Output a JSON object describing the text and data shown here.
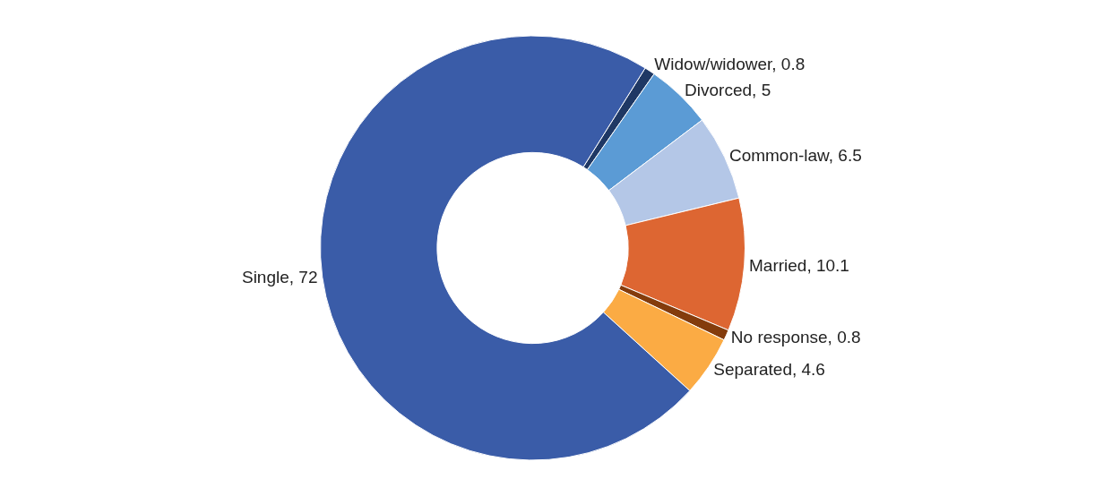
{
  "chart_data": {
    "type": "donut",
    "categories": [
      "Widow/widower, 0.8",
      "Divorced, 5",
      "Common-law, 6.5",
      "Married, 10.1",
      "No response, 0.8",
      "Separated, 4.6",
      "Single, 72"
    ],
    "values": [
      0.8,
      5,
      6.5,
      10.1,
      0.8,
      4.6,
      72
    ],
    "colors": [
      "#1f3864",
      "#5b9bd5",
      "#b4c7e7",
      "#dd6632",
      "#843c0c",
      "#fbab44",
      "#3a5ca8"
    ],
    "legend": false
  }
}
